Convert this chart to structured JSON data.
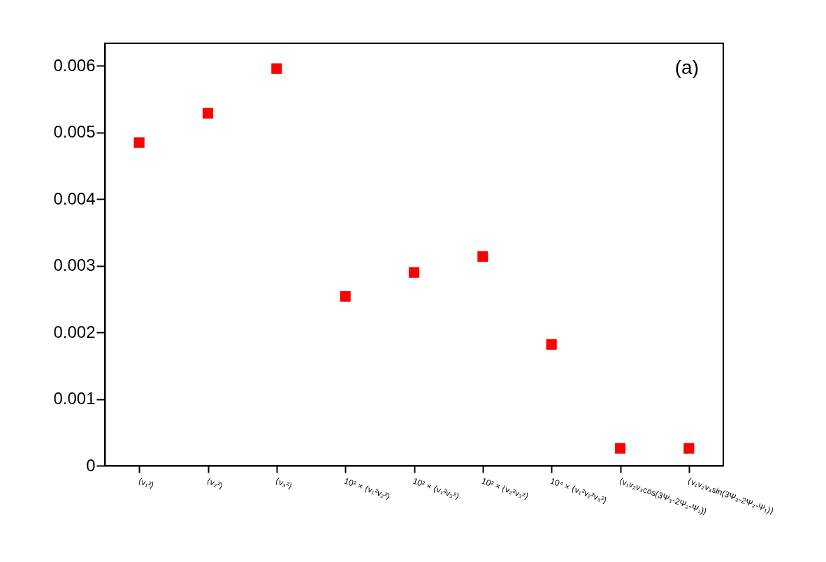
{
  "chart_data": {
    "type": "scatter",
    "categories": [
      "⟨v₁²⟩",
      "⟨v₂²⟩",
      "⟨v₃²⟩",
      "10² × ⟨v₁²v₂²⟩",
      "10² × ⟨v₁²v₃²⟩",
      "10² × ⟨v₂²v₃²⟩",
      "10⁴ × ⟨v₁²v₂²v₃²⟩",
      "⟨v₁v₂v₃cos(3Ψ₃-2Ψ₂-Ψ₁)⟩",
      "⟨v₁v₂v₃sin(3Ψ₃-2Ψ₂-Ψ₁)⟩"
    ],
    "series": [
      {
        "color": "#ff0000",
        "values": [
          0.00485,
          0.00529,
          0.00596,
          0.00254,
          0.0029,
          0.00314,
          0.00182,
          0.00026,
          0.00026
        ]
      }
    ],
    "ylim": [
      0,
      0.00634
    ],
    "yticks": [
      0,
      0.001,
      0.002,
      0.003,
      0.004,
      0.005,
      0.006
    ],
    "marker": "square",
    "grid": false,
    "legend": false,
    "annotations": [
      "(a)"
    ]
  }
}
